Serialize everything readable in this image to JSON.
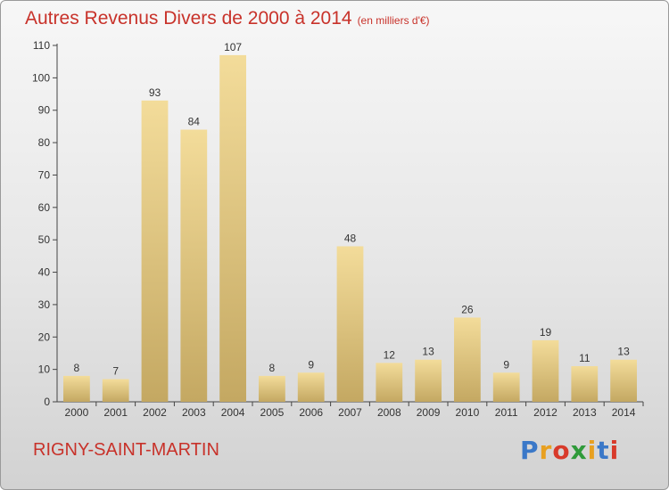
{
  "header": {
    "title": "Autres Revenus Divers de 2000 à 2014",
    "unit": "(en milliers d'€)"
  },
  "footer": {
    "commune": "RIGNY-SAINT-MARTIN",
    "logo_text": "Proxiti",
    "logo_colors": [
      "#3a78c8",
      "#e8a020",
      "#d83a2a",
      "#2f9a3a",
      "#e8a020",
      "#3a78c8",
      "#d83a2a"
    ]
  },
  "colors": {
    "bar_light": "#f3dc9a",
    "bar_dark": "#c4a862",
    "text": "#c8322a",
    "axis": "#444444"
  },
  "chart_data": {
    "type": "bar",
    "categories": [
      "2000",
      "2001",
      "2002",
      "2003",
      "2004",
      "2005",
      "2006",
      "2007",
      "2008",
      "2009",
      "2010",
      "2011",
      "2012",
      "2013",
      "2014"
    ],
    "values": [
      8,
      7,
      93,
      84,
      107,
      8,
      9,
      48,
      12,
      13,
      26,
      9,
      19,
      11,
      13
    ],
    "title": "Autres Revenus Divers de 2000 à 2014",
    "ylim": [
      0,
      110
    ],
    "yticks": [
      0,
      10,
      20,
      30,
      40,
      50,
      60,
      70,
      80,
      90,
      100,
      110
    ],
    "grid": false,
    "data_labels": true
  }
}
